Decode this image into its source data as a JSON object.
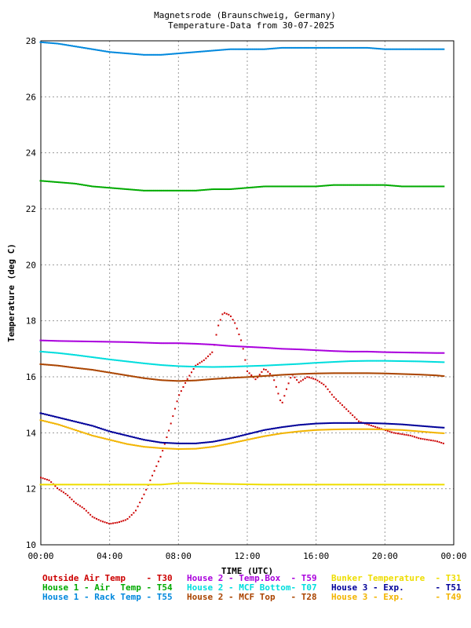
{
  "chart_data": {
    "type": "scatter",
    "title": "Magnetsrode (Braunschweig, Germany)",
    "subtitle": "Temperature-Data from 30-07-2025",
    "xlabel": "TIME (UTC)",
    "ylabel": "Temperature (deg C)",
    "xlim": [
      0,
      24
    ],
    "ylim": [
      10,
      28
    ],
    "x_ticks": [
      "00:00",
      "04:00",
      "08:00",
      "12:00",
      "16:00",
      "20:00",
      "00:00"
    ],
    "y_ticks": [
      "10",
      "12",
      "14",
      "16",
      "18",
      "20",
      "22",
      "24",
      "26",
      "28"
    ],
    "grid": true,
    "series": [
      {
        "name": "Outside Air Temp",
        "code": "T30",
        "color": "#cc0000",
        "x": [
          0,
          0.5,
          1,
          1.5,
          2,
          2.5,
          3,
          3.5,
          4,
          4.5,
          5,
          5.5,
          6,
          6.5,
          7,
          7.5,
          8,
          8.5,
          9,
          9.5,
          10,
          10.3,
          10.6,
          11,
          11.3,
          11.7,
          12,
          12.5,
          13,
          13.5,
          14,
          14.3,
          14.6,
          15,
          15.5,
          16,
          16.5,
          17,
          17.5,
          18,
          18.5,
          19,
          19.5,
          20,
          20.5,
          21,
          21.5,
          22,
          22.5,
          23,
          23.5
        ],
        "y": [
          12.4,
          12.3,
          12.0,
          11.8,
          11.5,
          11.3,
          11.0,
          10.85,
          10.75,
          10.8,
          10.9,
          11.2,
          11.8,
          12.5,
          13.2,
          14.2,
          15.3,
          15.9,
          16.4,
          16.6,
          16.9,
          17.8,
          18.3,
          18.2,
          17.9,
          17.2,
          16.2,
          15.9,
          16.3,
          16.0,
          15.0,
          15.6,
          16.1,
          15.8,
          16.0,
          15.9,
          15.7,
          15.3,
          15.0,
          14.7,
          14.4,
          14.3,
          14.2,
          14.1,
          14.0,
          13.95,
          13.9,
          13.8,
          13.75,
          13.7,
          13.6
        ]
      },
      {
        "name": "House 1 - Air  Temp",
        "code": "T54",
        "color": "#00aa00",
        "x": [
          0,
          1,
          2,
          3,
          4,
          5,
          6,
          7,
          8,
          9,
          10,
          11,
          12,
          13,
          14,
          15,
          16,
          17,
          18,
          19,
          20,
          21,
          22,
          23,
          23.5
        ],
        "y": [
          23.0,
          22.95,
          22.9,
          22.8,
          22.75,
          22.7,
          22.65,
          22.65,
          22.65,
          22.65,
          22.7,
          22.7,
          22.75,
          22.8,
          22.8,
          22.8,
          22.8,
          22.85,
          22.85,
          22.85,
          22.85,
          22.8,
          22.8,
          22.8,
          22.8
        ]
      },
      {
        "name": "House 1 - Rack Temp",
        "code": "T55",
        "color": "#0088dd",
        "x": [
          0,
          1,
          2,
          3,
          4,
          5,
          6,
          7,
          8,
          9,
          10,
          11,
          12,
          13,
          14,
          15,
          16,
          17,
          18,
          19,
          20,
          21,
          22,
          23,
          23.5
        ],
        "y": [
          27.95,
          27.9,
          27.8,
          27.7,
          27.6,
          27.55,
          27.5,
          27.5,
          27.55,
          27.6,
          27.65,
          27.7,
          27.7,
          27.7,
          27.75,
          27.75,
          27.75,
          27.75,
          27.75,
          27.75,
          27.7,
          27.7,
          27.7,
          27.7,
          27.7
        ]
      },
      {
        "name": "House 2 - Temp.Box",
        "code": "T59",
        "color": "#aa00dd",
        "x": [
          0,
          1,
          2,
          3,
          4,
          5,
          6,
          7,
          8,
          9,
          10,
          11,
          12,
          13,
          14,
          15,
          16,
          17,
          18,
          19,
          20,
          21,
          22,
          23,
          23.5
        ],
        "y": [
          17.3,
          17.28,
          17.27,
          17.26,
          17.25,
          17.24,
          17.22,
          17.2,
          17.2,
          17.18,
          17.15,
          17.1,
          17.07,
          17.04,
          17.0,
          16.98,
          16.95,
          16.92,
          16.9,
          16.9,
          16.88,
          16.87,
          16.86,
          16.85,
          16.85
        ]
      },
      {
        "name": "House 2 - MCF Bottom",
        "code": "T07",
        "color": "#00dddd",
        "x": [
          0,
          1,
          2,
          3,
          4,
          5,
          6,
          7,
          8,
          9,
          10,
          11,
          12,
          13,
          14,
          15,
          16,
          17,
          18,
          19,
          20,
          21,
          22,
          23,
          23.5
        ],
        "y": [
          16.9,
          16.85,
          16.78,
          16.7,
          16.62,
          16.55,
          16.48,
          16.42,
          16.38,
          16.36,
          16.35,
          16.36,
          16.38,
          16.4,
          16.43,
          16.46,
          16.5,
          16.53,
          16.56,
          16.57,
          16.57,
          16.56,
          16.55,
          16.53,
          16.52
        ]
      },
      {
        "name": "House 2 - MCF Top",
        "code": "T28",
        "color": "#aa4400",
        "x": [
          0,
          1,
          2,
          3,
          4,
          5,
          6,
          7,
          8,
          9,
          10,
          11,
          12,
          13,
          14,
          15,
          16,
          17,
          18,
          19,
          20,
          21,
          22,
          23,
          23.5
        ],
        "y": [
          16.45,
          16.4,
          16.32,
          16.25,
          16.15,
          16.05,
          15.95,
          15.88,
          15.85,
          15.87,
          15.92,
          15.96,
          15.99,
          16.03,
          16.07,
          16.1,
          16.12,
          16.13,
          16.13,
          16.13,
          16.12,
          16.1,
          16.08,
          16.05,
          16.02
        ]
      },
      {
        "name": "Bunker Temperature",
        "code": "T31",
        "color": "#eedd00",
        "x": [
          0,
          1,
          2,
          3,
          4,
          5,
          6,
          7,
          8,
          9,
          10,
          11,
          12,
          13,
          14,
          15,
          16,
          17,
          18,
          19,
          20,
          21,
          22,
          23,
          23.5
        ],
        "y": [
          12.15,
          12.15,
          12.15,
          12.15,
          12.15,
          12.15,
          12.15,
          12.15,
          12.2,
          12.2,
          12.18,
          12.17,
          12.16,
          12.15,
          12.15,
          12.15,
          12.15,
          12.15,
          12.15,
          12.15,
          12.15,
          12.15,
          12.15,
          12.15,
          12.15
        ]
      },
      {
        "name": "House 3 - Exp.",
        "code": "T51",
        "color": "#000099",
        "x": [
          0,
          1,
          2,
          3,
          4,
          5,
          6,
          7,
          8,
          9,
          10,
          11,
          12,
          13,
          14,
          15,
          16,
          17,
          18,
          19,
          20,
          21,
          22,
          23,
          23.5
        ],
        "y": [
          14.7,
          14.55,
          14.4,
          14.25,
          14.05,
          13.9,
          13.75,
          13.65,
          13.62,
          13.62,
          13.68,
          13.8,
          13.95,
          14.1,
          14.2,
          14.28,
          14.33,
          14.35,
          14.35,
          14.35,
          14.33,
          14.3,
          14.25,
          14.2,
          14.18
        ]
      },
      {
        "name": "House 3 - Exp.",
        "code": "T49",
        "color": "#f2b400",
        "x": [
          0,
          1,
          2,
          3,
          4,
          5,
          6,
          7,
          8,
          9,
          10,
          11,
          12,
          13,
          14,
          15,
          16,
          17,
          18,
          19,
          20,
          21,
          22,
          23,
          23.5
        ],
        "y": [
          14.45,
          14.3,
          14.1,
          13.9,
          13.75,
          13.6,
          13.5,
          13.45,
          13.42,
          13.43,
          13.5,
          13.62,
          13.75,
          13.88,
          13.98,
          14.05,
          14.1,
          14.12,
          14.13,
          14.13,
          14.12,
          14.1,
          14.05,
          14.0,
          13.98
        ]
      }
    ],
    "legend": [
      {
        "label": "Outside Air Temp    - T30",
        "color": "#cc0000"
      },
      {
        "label": "House 2 - Temp.Box  - T59",
        "color": "#aa00dd"
      },
      {
        "label": "Bunker Temperature  - T31",
        "color": "#eedd00"
      },
      {
        "label": "House 1 - Air  Temp - T54",
        "color": "#00aa00"
      },
      {
        "label": "House 2 - MCF Bottom- T07",
        "color": "#00dddd"
      },
      {
        "label": "House 3 - Exp.      - T51",
        "color": "#000099"
      },
      {
        "label": "House 1 - Rack Temp - T55",
        "color": "#0088dd"
      },
      {
        "label": "House 2 - MCF Top   - T28",
        "color": "#aa4400"
      },
      {
        "label": "House 3 - Exp.      - T49",
        "color": "#f2b400"
      }
    ]
  }
}
